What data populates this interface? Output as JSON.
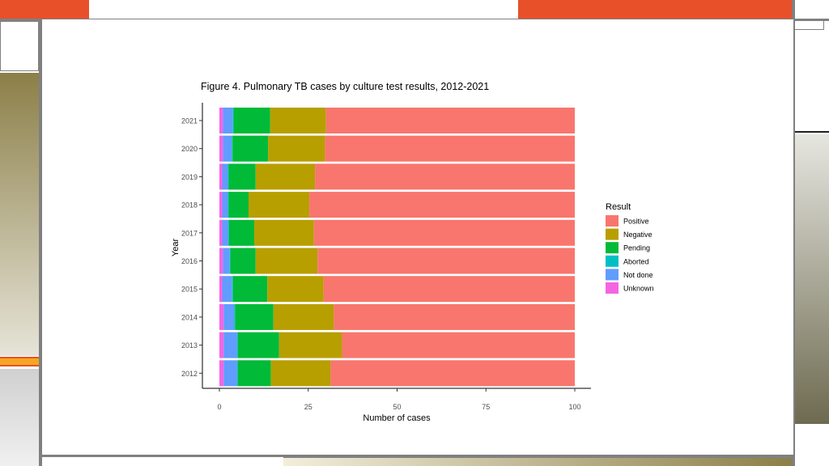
{
  "chart_data": {
    "type": "bar",
    "orientation": "horizontal",
    "stacked": true,
    "title": "Figure 4. Pulmonary TB cases by culture test results, 2012-2021",
    "xlabel": "Number of cases",
    "ylabel": "Year",
    "xlim": [
      0,
      100
    ],
    "xticks": [
      0,
      25,
      50,
      75,
      100
    ],
    "categories": [
      "2021",
      "2020",
      "2019",
      "2018",
      "2017",
      "2016",
      "2015",
      "2014",
      "2013",
      "2012"
    ],
    "legend_title": "Result",
    "legend_position": "right",
    "series": [
      {
        "name": "Unknown",
        "color": "#F564E3",
        "values": [
          1.0,
          1.0,
          0.8,
          0.8,
          0.8,
          1.0,
          0.8,
          1.2,
          1.2,
          1.2
        ]
      },
      {
        "name": "Not done",
        "color": "#619CFF",
        "values": [
          2.8,
          2.5,
          1.6,
          1.6,
          1.7,
          1.9,
          2.8,
          3.0,
          3.8,
          3.8
        ]
      },
      {
        "name": "Aborted",
        "color": "#00BFC4",
        "values": [
          0.2,
          0.2,
          0.2,
          0.2,
          0.2,
          0.2,
          0.2,
          0.2,
          0.2,
          0.2
        ]
      },
      {
        "name": "Pending",
        "color": "#00BA38",
        "values": [
          10.3,
          10.0,
          7.6,
          5.6,
          7.1,
          7.1,
          9.7,
          10.8,
          11.6,
          9.3
        ]
      },
      {
        "name": "Negative",
        "color": "#B79F00",
        "values": [
          15.7,
          16.0,
          16.7,
          17.1,
          16.8,
          17.4,
          15.8,
          17.0,
          17.7,
          16.8
        ]
      },
      {
        "name": "Positive",
        "color": "#F8766D",
        "values": [
          70.0,
          70.3,
          73.1,
          74.7,
          73.4,
          72.4,
          70.7,
          67.8,
          65.5,
          68.7
        ]
      }
    ],
    "legend_order": [
      "Positive",
      "Negative",
      "Pending",
      "Aborted",
      "Not done",
      "Unknown"
    ]
  },
  "colors": {
    "accent_orange": "#E8502A",
    "frame_gray": "#808080",
    "olive_gradient_dark": "#8C7F48",
    "olive_gradient_light": "#E6E4D8",
    "khaki_box": "#C8C6A8"
  }
}
